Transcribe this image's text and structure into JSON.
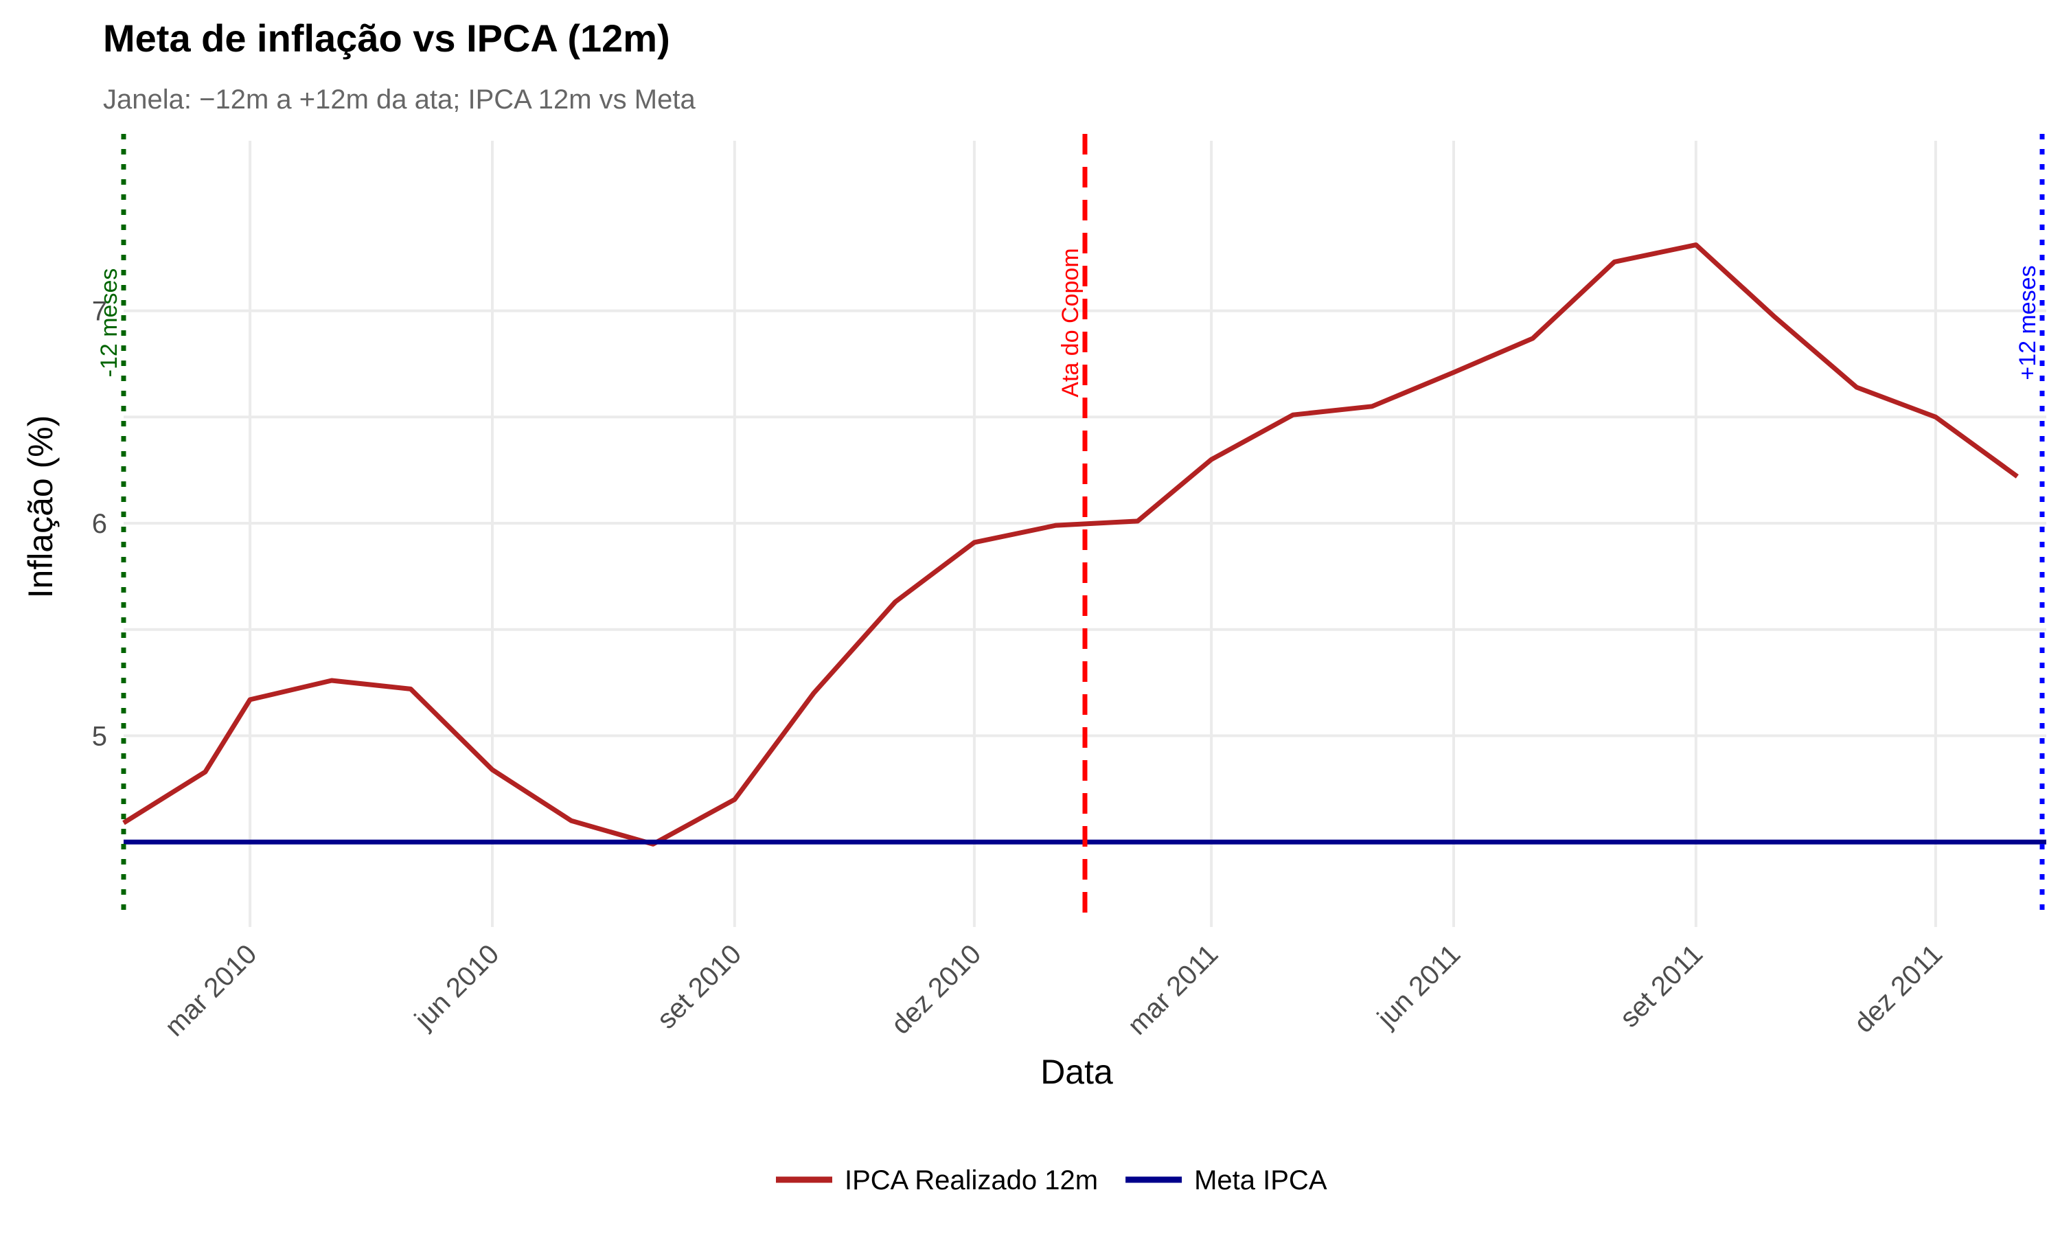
{
  "title": "Meta de inflação vs IPCA (12m)",
  "subtitle": "Janela: −12m a +12m da ata; IPCA 12m vs Meta",
  "chart_data": {
    "type": "line",
    "title": "Meta de inflação vs IPCA (12m)",
    "subtitle": "Janela: −12m a +12m da ata; IPCA 12m vs Meta",
    "xlabel": "Data",
    "ylabel": "Inflação (%)",
    "xlim": [
      "2010-01-12",
      "2012-01-12"
    ],
    "ylim": [
      4.1,
      7.8
    ],
    "y_ticks": [
      5,
      6,
      7
    ],
    "x_ticks": [
      {
        "date": "2010-03-01",
        "label": "mar 2010"
      },
      {
        "date": "2010-06-01",
        "label": "jun 2010"
      },
      {
        "date": "2010-09-01",
        "label": "set 2010"
      },
      {
        "date": "2010-12-01",
        "label": "dez 2010"
      },
      {
        "date": "2011-03-01",
        "label": "mar 2011"
      },
      {
        "date": "2011-06-01",
        "label": "jun 2011"
      },
      {
        "date": "2011-09-01",
        "label": "set 2011"
      },
      {
        "date": "2011-12-01",
        "label": "dez 2011"
      }
    ],
    "grid": true,
    "legend_position": "bottom",
    "series": [
      {
        "name": "IPCA Realizado 12m",
        "color": "#b22222",
        "points": [
          {
            "x": "2010-01-12",
            "y": 4.59
          },
          {
            "x": "2010-02-12",
            "y": 4.83
          },
          {
            "x": "2010-03-01",
            "y": 5.17
          },
          {
            "x": "2010-04-01",
            "y": 5.26
          },
          {
            "x": "2010-05-01",
            "y": 5.22
          },
          {
            "x": "2010-06-01",
            "y": 4.84
          },
          {
            "x": "2010-07-01",
            "y": 4.6
          },
          {
            "x": "2010-08-01",
            "y": 4.49
          },
          {
            "x": "2010-09-01",
            "y": 4.7
          },
          {
            "x": "2010-10-01",
            "y": 5.2
          },
          {
            "x": "2010-11-01",
            "y": 5.63
          },
          {
            "x": "2010-12-01",
            "y": 5.91
          },
          {
            "x": "2011-01-01",
            "y": 5.99
          },
          {
            "x": "2011-02-01",
            "y": 6.01
          },
          {
            "x": "2011-03-01",
            "y": 6.3
          },
          {
            "x": "2011-04-01",
            "y": 6.51
          },
          {
            "x": "2011-05-01",
            "y": 6.55
          },
          {
            "x": "2011-06-01",
            "y": 6.71
          },
          {
            "x": "2011-07-01",
            "y": 6.87
          },
          {
            "x": "2011-08-01",
            "y": 7.23
          },
          {
            "x": "2011-09-01",
            "y": 7.31
          },
          {
            "x": "2011-10-01",
            "y": 6.97
          },
          {
            "x": "2011-11-01",
            "y": 6.64
          },
          {
            "x": "2011-12-01",
            "y": 6.5
          },
          {
            "x": "2012-01-01",
            "y": 6.22
          }
        ]
      },
      {
        "name": "Meta IPCA",
        "color": "#00008b",
        "points": [
          {
            "x": "2010-01-12",
            "y": 4.5
          },
          {
            "x": "2012-01-12",
            "y": 4.5
          }
        ]
      }
    ],
    "vlines": [
      {
        "x": "2010-01-12",
        "label": "-12 meses",
        "color": "#006400",
        "style": "dotted"
      },
      {
        "x": "2011-01-12",
        "label": "Ata do Copom",
        "color": "#ff0000",
        "style": "dashed"
      },
      {
        "x": "2012-01-12",
        "label": "+12 meses",
        "color": "#0000ff",
        "style": "dotted"
      }
    ]
  }
}
